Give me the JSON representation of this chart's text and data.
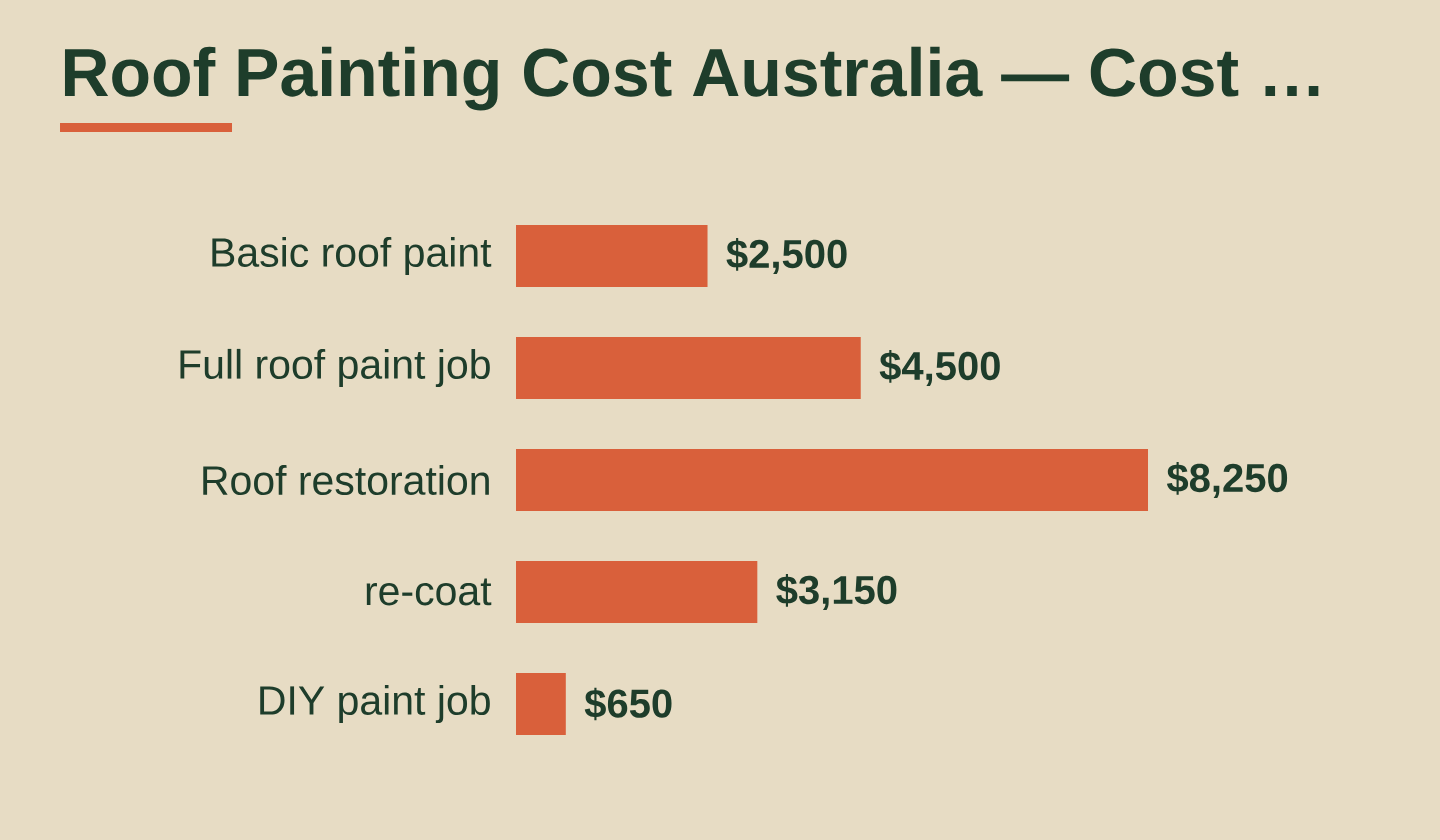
{
  "chart_data": {
    "type": "bar",
    "orientation": "horizontal",
    "title": "Roof Painting Cost Australia — Cost …",
    "categories": [
      "Basic roof paint",
      "Full roof paint job",
      "Roof restoration",
      "re-coat",
      "DIY paint job"
    ],
    "values": [
      2500,
      4500,
      8250,
      3150,
      650
    ],
    "value_labels": [
      "$2,500",
      "$4,500",
      "$8,250",
      "$3,150",
      "$650"
    ],
    "color": "#d9603b"
  }
}
